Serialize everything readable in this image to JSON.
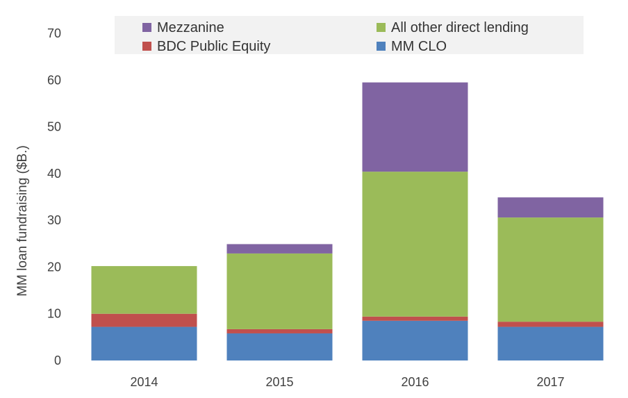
{
  "chart_data": {
    "type": "bar",
    "stacked": true,
    "categories": [
      "2014",
      "2015",
      "2016",
      "2017"
    ],
    "series": [
      {
        "name": "MM CLO",
        "color": "#4f81bd",
        "values": [
          7.2,
          5.8,
          8.5,
          7.2
        ]
      },
      {
        "name": "BDC Public Equity",
        "color": "#c0504d",
        "values": [
          2.8,
          0.9,
          0.9,
          1.1
        ]
      },
      {
        "name": "All other direct lending",
        "color": "#9bbb59",
        "values": [
          10.2,
          16.2,
          31.0,
          22.3
        ]
      },
      {
        "name": "Mezzanine",
        "color": "#8064a2",
        "values": [
          0.0,
          2.0,
          19.1,
          4.3
        ]
      }
    ],
    "ylabel": "MM loan fundraising ($B.)",
    "xlabel": "",
    "ylim": [
      0,
      70
    ],
    "yticks": [
      "0",
      "10",
      "20",
      "30",
      "40",
      "50",
      "60",
      "70"
    ],
    "legend": {
      "position": "top",
      "order": [
        "Mezzanine",
        "All other direct lending",
        "BDC Public Equity",
        "MM CLO"
      ]
    },
    "grid": false
  }
}
